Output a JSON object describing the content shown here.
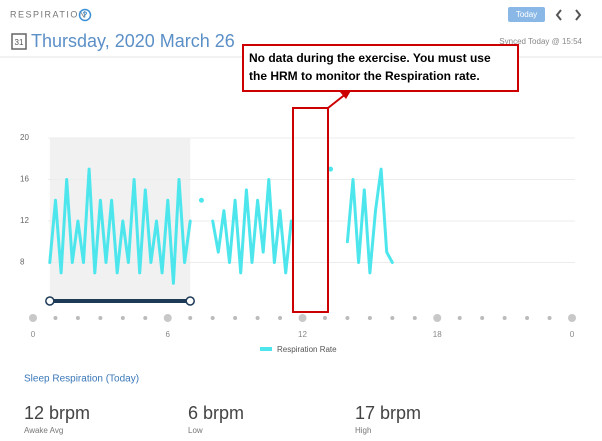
{
  "header": {
    "section": "RESPIRATION",
    "today_button": "Today",
    "calendar_day": "31",
    "date": "Thursday, 2020 March 26",
    "synced": "Synced Today @ 15:54"
  },
  "annotation": [
    "No data during the exercise. You must use",
    "the HRM to monitor the Respiration rate."
  ],
  "chart_data": {
    "type": "line",
    "x": [
      0.75,
      1,
      1.25,
      1.5,
      1.75,
      2,
      2.25,
      2.5,
      2.75,
      3,
      3.25,
      3.5,
      3.75,
      4,
      4.25,
      4.5,
      4.75,
      5,
      5.25,
      5.5,
      5.75,
      6,
      6.25,
      6.5,
      6.75,
      7,
      7.25,
      7.5,
      7.75,
      8,
      8.25,
      8.5,
      8.75,
      9,
      9.25,
      9.5,
      9.75,
      10,
      10.25,
      10.5,
      10.75,
      11,
      11.25,
      11.5,
      11.75,
      13.25,
      13.5,
      14,
      14.25,
      14.5,
      14.75,
      15,
      15.25,
      15.5,
      15.75,
      16
    ],
    "series": [
      {
        "name": "Respiration Rate",
        "color": "#4de6ec",
        "values": [
          8,
          14,
          7,
          16,
          8,
          12,
          8,
          17,
          7,
          14,
          8,
          14,
          7,
          12,
          8,
          16,
          7,
          15,
          8,
          12,
          7,
          14,
          6,
          16,
          8,
          12,
          null,
          14,
          null,
          12,
          9,
          13,
          8,
          14,
          7,
          15,
          8,
          14,
          9,
          16,
          8,
          13,
          7,
          12,
          null,
          17,
          null,
          10,
          16,
          8,
          15,
          7,
          13,
          17,
          9,
          8
        ]
      }
    ],
    "xlim": [
      0,
      24
    ],
    "xticks": [
      0,
      6,
      12,
      18,
      {
        "value": 24,
        "label": "0"
      }
    ],
    "ylim": [
      4,
      20
    ],
    "yticks": [
      8,
      12,
      16,
      20
    ],
    "grid": true,
    "sleep": [
      0.75,
      7.0
    ]
  },
  "summary": {
    "title": "Sleep Respiration (Today)",
    "stats": [
      {
        "value": "12 brpm",
        "label": "Awake Avg"
      },
      {
        "value": "6 brpm",
        "label": "Low"
      },
      {
        "value": "17 brpm",
        "label": "High"
      }
    ]
  }
}
